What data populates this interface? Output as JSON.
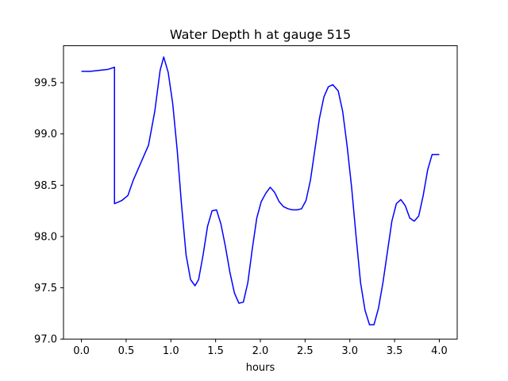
{
  "chart_data": {
    "type": "line",
    "title": "Water Depth h at gauge 515",
    "xlabel": "hours",
    "ylabel": "",
    "xlim": [
      -0.2,
      4.2
    ],
    "ylim": [
      97.0,
      99.86
    ],
    "xticks": [
      0.0,
      0.5,
      1.0,
      1.5,
      2.0,
      2.5,
      3.0,
      3.5,
      4.0
    ],
    "xtick_labels": [
      "0.0",
      "0.5",
      "1.0",
      "1.5",
      "2.0",
      "2.5",
      "3.0",
      "3.5",
      "4.0"
    ],
    "yticks": [
      97.0,
      97.5,
      98.0,
      98.5,
      99.0,
      99.5
    ],
    "ytick_labels": [
      "97.0",
      "97.5",
      "98.0",
      "98.5",
      "99.0",
      "99.5"
    ],
    "grid": false,
    "series": [
      {
        "color": "#0000ff",
        "x": [
          0.0,
          0.1,
          0.2,
          0.3,
          0.37,
          0.37,
          0.45,
          0.52,
          0.58,
          0.68,
          0.75,
          0.82,
          0.88,
          0.92,
          0.97,
          1.02,
          1.07,
          1.12,
          1.17,
          1.22,
          1.27,
          1.31,
          1.36,
          1.41,
          1.46,
          1.51,
          1.56,
          1.61,
          1.66,
          1.71,
          1.76,
          1.81,
          1.86,
          1.91,
          1.96,
          2.01,
          2.06,
          2.11,
          2.16,
          2.21,
          2.26,
          2.31,
          2.36,
          2.41,
          2.46,
          2.51,
          2.56,
          2.61,
          2.66,
          2.71,
          2.76,
          2.81,
          2.87,
          2.92,
          2.97,
          3.02,
          3.07,
          3.12,
          3.17,
          3.22,
          3.27,
          3.32,
          3.37,
          3.42,
          3.47,
          3.52,
          3.57,
          3.62,
          3.67,
          3.72,
          3.77,
          3.82,
          3.87,
          3.92,
          3.97,
          4.0
        ],
        "y": [
          99.61,
          99.61,
          99.62,
          99.63,
          99.65,
          98.32,
          98.35,
          98.4,
          98.55,
          98.75,
          98.89,
          99.22,
          99.62,
          99.75,
          99.6,
          99.3,
          98.85,
          98.3,
          97.82,
          97.58,
          97.52,
          97.58,
          97.82,
          98.1,
          98.25,
          98.26,
          98.12,
          97.9,
          97.65,
          97.45,
          97.35,
          97.36,
          97.55,
          97.88,
          98.18,
          98.34,
          98.42,
          98.48,
          98.43,
          98.34,
          98.29,
          98.27,
          98.26,
          98.26,
          98.27,
          98.35,
          98.55,
          98.85,
          99.15,
          99.36,
          99.46,
          99.48,
          99.42,
          99.22,
          98.88,
          98.48,
          98.0,
          97.55,
          97.28,
          97.14,
          97.14,
          97.3,
          97.55,
          97.85,
          98.15,
          98.32,
          98.36,
          98.3,
          98.18,
          98.15,
          98.2,
          98.4,
          98.65,
          98.8,
          98.8,
          98.8
        ]
      }
    ]
  }
}
